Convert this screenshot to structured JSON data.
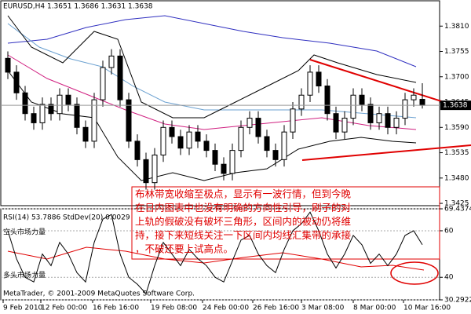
{
  "window": {
    "footer": "MetaTrader, © 2001-2009 MetaQuotes Software Corp.",
    "annotation_lines": [
      "布林带宽收缩至极点，显示有一波行情，但到今晚",
      "在日内图表中也没有明确的方向性引导，刷子的对",
      "上轨的假破没有破坏三角形，区间内的被动仍将维",
      "持，接下来短线关注一下区间内均线汇集带的承接",
      "，不破还要上试高点。"
    ],
    "x_labels": [
      "9 Feb 2010",
      "12 Feb 00:00",
      "16 Feb 16:00",
      "19 Feb 08:00",
      "24 Feb 00:00",
      "26 Feb 16:00",
      "3 Mar 08:00",
      "8 Mar 00:00",
      "10 Mar 16:00"
    ]
  },
  "chart_data": [
    {
      "type": "candlestick",
      "title": "EURUSD,H4  1.3651 1.3686 1.3631 1.3638",
      "open": [
        1.374,
        1.371,
        1.3665,
        1.362,
        1.36,
        1.364,
        1.362,
        1.366,
        1.364,
        1.359,
        1.356,
        1.365,
        1.372,
        1.3745,
        1.365,
        1.356,
        1.352,
        1.347,
        1.353,
        1.359,
        1.357,
        1.3545,
        1.358,
        1.356,
        1.354,
        1.351,
        1.349,
        1.354,
        1.359,
        1.361,
        1.357,
        1.354,
        1.352,
        1.358,
        1.363,
        1.366,
        1.371,
        1.368,
        1.362,
        1.358,
        1.361,
        1.366,
        1.364,
        1.36,
        1.362,
        1.359,
        1.361,
        1.365,
        1.3651
      ],
      "high": [
        1.3755,
        1.3725,
        1.368,
        1.3635,
        1.3655,
        1.3655,
        1.3675,
        1.3675,
        1.3655,
        1.3605,
        1.3665,
        1.3735,
        1.376,
        1.376,
        1.3665,
        1.3575,
        1.3535,
        1.3545,
        1.3605,
        1.3605,
        1.3585,
        1.3595,
        1.3595,
        1.3575,
        1.3555,
        1.3525,
        1.3555,
        1.3605,
        1.3625,
        1.3625,
        1.3585,
        1.3555,
        1.3595,
        1.3645,
        1.3675,
        1.3725,
        1.3725,
        1.3695,
        1.3635,
        1.3625,
        1.3675,
        1.3675,
        1.3655,
        1.3635,
        1.3635,
        1.3625,
        1.3665,
        1.3675,
        1.3686
      ],
      "low": [
        1.3695,
        1.365,
        1.3605,
        1.3585,
        1.3585,
        1.3605,
        1.3605,
        1.3625,
        1.3575,
        1.3545,
        1.3545,
        1.3635,
        1.3705,
        1.3635,
        1.3545,
        1.3505,
        1.3455,
        1.3455,
        1.3515,
        1.3555,
        1.353,
        1.353,
        1.3545,
        1.3525,
        1.3495,
        1.3475,
        1.3475,
        1.3525,
        1.3575,
        1.3555,
        1.3525,
        1.3505,
        1.3505,
        1.3565,
        1.3615,
        1.3645,
        1.3665,
        1.3605,
        1.3565,
        1.3565,
        1.3595,
        1.3625,
        1.3585,
        1.3585,
        1.3575,
        1.3575,
        1.3595,
        1.3635,
        1.3631
      ],
      "close": [
        1.371,
        1.3665,
        1.362,
        1.36,
        1.364,
        1.362,
        1.366,
        1.364,
        1.359,
        1.356,
        1.365,
        1.372,
        1.3745,
        1.365,
        1.356,
        1.352,
        1.347,
        1.353,
        1.359,
        1.357,
        1.3545,
        1.358,
        1.356,
        1.354,
        1.351,
        1.349,
        1.354,
        1.359,
        1.361,
        1.357,
        1.354,
        1.352,
        1.358,
        1.363,
        1.366,
        1.371,
        1.368,
        1.362,
        1.358,
        1.361,
        1.366,
        1.364,
        1.36,
        1.362,
        1.359,
        1.361,
        1.365,
        1.366,
        1.3638
      ],
      "ylim": [
        1.342,
        1.3865
      ],
      "yticks": [
        {
          "value": 1.381,
          "label": "1.3810"
        },
        1.3755,
        {
          "value": 1.37,
          "label": "1.3700"
        },
        1.3645,
        {
          "value": 1.359,
          "label": "1.3590"
        },
        1.3535,
        {
          "value": 1.348,
          "label": "1.3480"
        },
        1.3425
      ],
      "last_price": 1.3638
    },
    {
      "type": "line",
      "title": "RSI(14) 53.7886  StdDev(20) 0.0029",
      "color": "#000000",
      "values": [
        60,
        48,
        40,
        38,
        50,
        45,
        55,
        50,
        42,
        38,
        55,
        65,
        67,
        50,
        40,
        37,
        33,
        45,
        55,
        50,
        45,
        52,
        48,
        45,
        40,
        38,
        47,
        56,
        58,
        50,
        45,
        42,
        52,
        60,
        63,
        68,
        60,
        50,
        44,
        50,
        58,
        54,
        46,
        50,
        45,
        50,
        58,
        60,
        54
      ],
      "ylim": [
        30.2922,
        69.4374
      ],
      "yticks": [
        69.4374,
        60,
        40,
        30.2922
      ],
      "bear_label": "空头市场力量",
      "bull_label": "多头市场力量"
    }
  ]
}
